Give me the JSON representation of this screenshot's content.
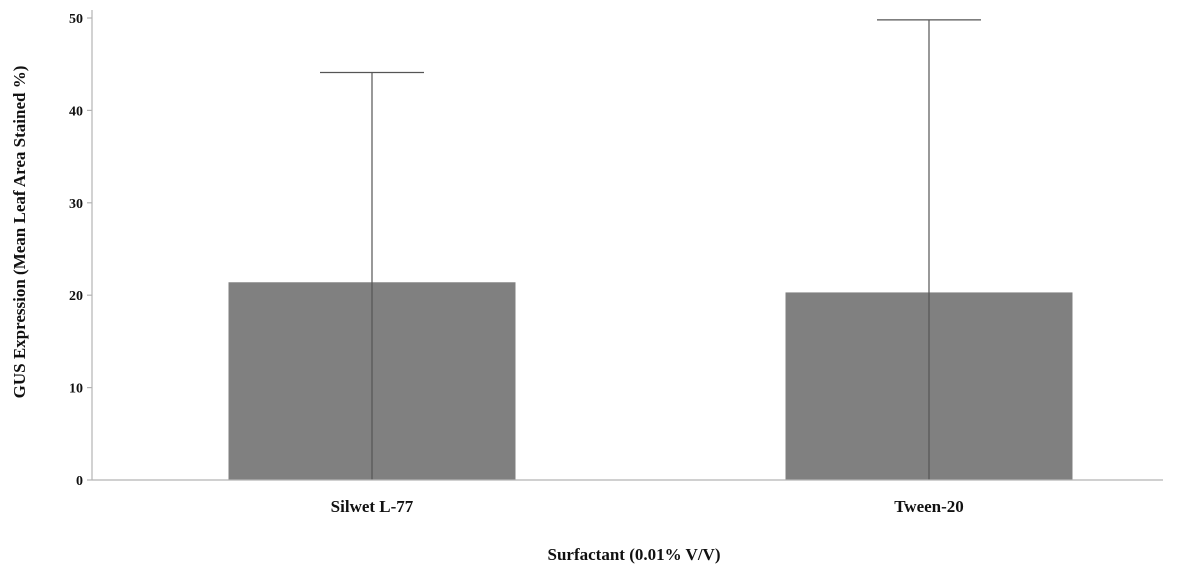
{
  "chart_data": {
    "type": "bar",
    "categories": [
      "Silwet L-77",
      "Tween-20"
    ],
    "values": [
      21.4,
      20.3
    ],
    "error_upper": [
      44.1,
      49.8
    ],
    "xlabel": "Surfactant (0.01% V/V)",
    "ylabel": "GUS Expression (Mean Leaf Area Stained %)",
    "ylim": [
      0,
      50
    ],
    "yticks": [
      "0",
      "10",
      "20",
      "30",
      "40",
      "50"
    ],
    "grid": false,
    "legend": "none",
    "colors": {
      "bar": "#808080",
      "axis": "#b3b3b3",
      "error_bar": "#555555"
    }
  }
}
